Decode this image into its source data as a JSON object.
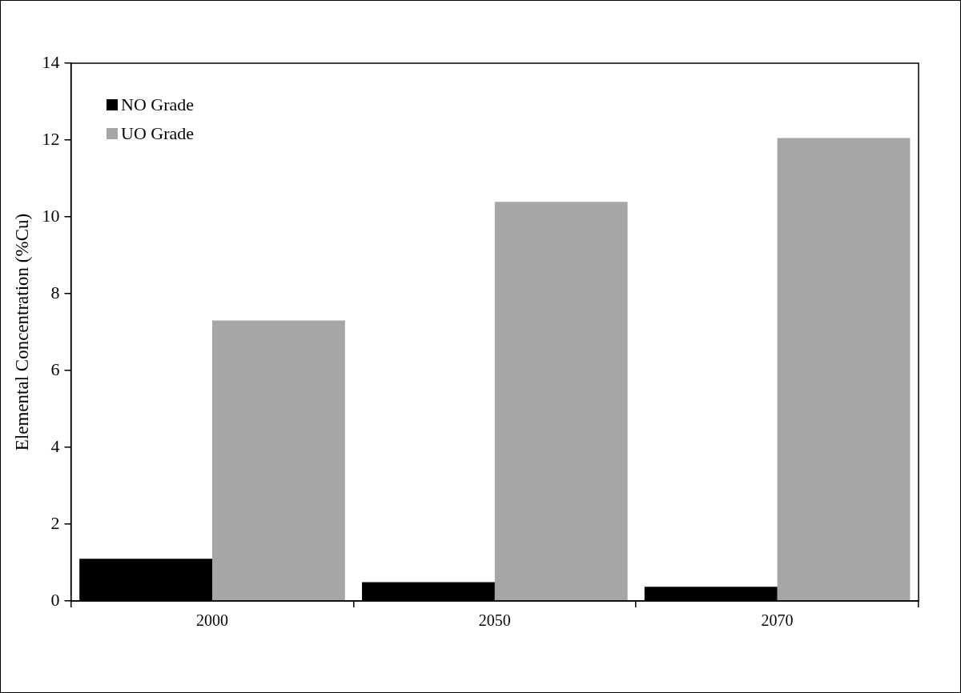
{
  "chart_data": {
    "type": "bar",
    "ylabel": "Elemental Concentration (%Cu)",
    "categories": [
      "2000",
      "2050",
      "2070"
    ],
    "series": [
      {
        "name": "NO Grade",
        "color": "#000000",
        "values": [
          1.1,
          0.49,
          0.37
        ]
      },
      {
        "name": "UO Grade",
        "color": "#a6a6a6",
        "values": [
          7.3,
          10.39,
          12.05
        ]
      }
    ],
    "ylim": [
      0,
      14
    ],
    "yticks": [
      0,
      2,
      4,
      6,
      8,
      10,
      12,
      14
    ],
    "grid": false,
    "legend": "top left"
  }
}
